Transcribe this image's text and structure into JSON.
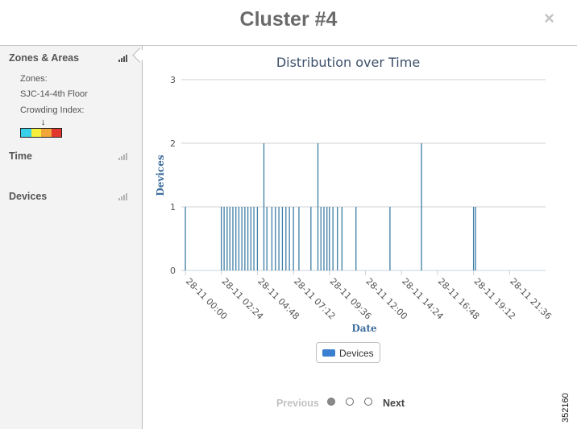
{
  "header": {
    "title": "Cluster #4",
    "close_glyph": "×"
  },
  "sidebar": {
    "zones": {
      "label": "Zones & Areas",
      "zones_label": "Zones:",
      "zone_value": "SJC-14-4th Floor",
      "crowding_label": "Crowding Index:",
      "crowding_marker": "↓",
      "crowding_level": 0.6,
      "crowding_colors": [
        "#37d0e8",
        "#f6ee3a",
        "#f2a63a",
        "#e2372c"
      ]
    },
    "time": {
      "label": "Time"
    },
    "devices": {
      "label": "Devices"
    },
    "icon_colors": {
      "active": "#555555",
      "inactive": "#b5b5b5"
    }
  },
  "chart_data": {
    "type": "bar",
    "title": "Distribution over Time",
    "xlabel": "Date",
    "ylabel": "Devices",
    "ylim": [
      0,
      3
    ],
    "yticks": [
      0,
      1,
      2,
      3
    ],
    "xlim": [
      "28-11 00:00",
      "28-11 23:59"
    ],
    "xticks": [
      "28-11 00:00",
      "28-11 02:24",
      "28-11 04:48",
      "28-11 07:12",
      "28-11 09:36",
      "28-11 12:00",
      "28-11 14:24",
      "28-11 16:48",
      "28-11 19:12",
      "28-11 21:36"
    ],
    "grid": true,
    "series": [
      {
        "name": "Devices",
        "color": "#3d7ea6",
        "points": [
          {
            "t": "28-11 00:00",
            "v": 1
          },
          {
            "t": "28-11 02:24",
            "v": 1
          },
          {
            "t": "28-11 02:35",
            "v": 1
          },
          {
            "t": "28-11 02:47",
            "v": 1
          },
          {
            "t": "28-11 02:58",
            "v": 1
          },
          {
            "t": "28-11 03:10",
            "v": 1
          },
          {
            "t": "28-11 03:22",
            "v": 1
          },
          {
            "t": "28-11 03:34",
            "v": 1
          },
          {
            "t": "28-11 03:46",
            "v": 1
          },
          {
            "t": "28-11 03:58",
            "v": 1
          },
          {
            "t": "28-11 04:10",
            "v": 1
          },
          {
            "t": "28-11 04:22",
            "v": 1
          },
          {
            "t": "28-11 04:34",
            "v": 1
          },
          {
            "t": "28-11 04:48",
            "v": 1
          },
          {
            "t": "28-11 05:14",
            "v": 2
          },
          {
            "t": "28-11 05:26",
            "v": 1
          },
          {
            "t": "28-11 05:46",
            "v": 1
          },
          {
            "t": "28-11 06:00",
            "v": 1
          },
          {
            "t": "28-11 06:14",
            "v": 1
          },
          {
            "t": "28-11 06:28",
            "v": 1
          },
          {
            "t": "28-11 06:42",
            "v": 1
          },
          {
            "t": "28-11 06:56",
            "v": 1
          },
          {
            "t": "28-11 07:12",
            "v": 1
          },
          {
            "t": "28-11 07:34",
            "v": 1
          },
          {
            "t": "28-11 08:22",
            "v": 1
          },
          {
            "t": "28-11 08:50",
            "v": 2
          },
          {
            "t": "28-11 09:02",
            "v": 1
          },
          {
            "t": "28-11 09:14",
            "v": 1
          },
          {
            "t": "28-11 09:26",
            "v": 1
          },
          {
            "t": "28-11 09:36",
            "v": 1
          },
          {
            "t": "28-11 09:50",
            "v": 1
          },
          {
            "t": "28-11 10:08",
            "v": 1
          },
          {
            "t": "28-11 10:26",
            "v": 1
          },
          {
            "t": "28-11 11:22",
            "v": 1
          },
          {
            "t": "28-11 13:38",
            "v": 1
          },
          {
            "t": "28-11 15:44",
            "v": 2
          },
          {
            "t": "28-11 19:12",
            "v": 1
          },
          {
            "t": "28-11 19:20",
            "v": 1
          }
        ]
      }
    ]
  },
  "legend": {
    "label": "Devices",
    "color": "#3b7fd0"
  },
  "pager": {
    "previous": "Previous",
    "next": "Next",
    "active_page": 1,
    "pages": 3
  },
  "figure_id": "352160"
}
